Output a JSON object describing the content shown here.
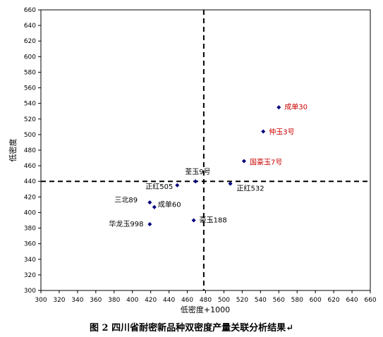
{
  "caption": "图 2 四川省耐密新品种双密度产量关联分析结果↵",
  "chart_data": {
    "type": "scatter",
    "xlabel": "低密度+1000",
    "ylabel": "低密度",
    "xlim": [
      300,
      660
    ],
    "ylim": [
      300,
      660
    ],
    "x_ticks": [
      300,
      320,
      340,
      360,
      380,
      400,
      420,
      440,
      460,
      480,
      500,
      520,
      540,
      560,
      580,
      600,
      620,
      640,
      660
    ],
    "y_ticks": [
      300,
      320,
      340,
      360,
      380,
      400,
      420,
      440,
      460,
      480,
      500,
      520,
      540,
      560,
      580,
      600,
      620,
      640,
      660
    ],
    "reference_lines": {
      "x": 478,
      "y": 440
    },
    "grid": false,
    "legend": "none",
    "marker_color": "#000080",
    "points": [
      {
        "label": "成单30",
        "x": 560,
        "y": 535,
        "color": "#cc0000"
      },
      {
        "label": "仲玉3号",
        "x": 543,
        "y": 504,
        "color": "#cc0000"
      },
      {
        "label": "国豪玉7号",
        "x": 522,
        "y": 466,
        "color": "#cc0000"
      },
      {
        "label": "荃玉9号",
        "x": 469,
        "y": 440,
        "color": "#000000"
      },
      {
        "label": "正红505",
        "x": 449,
        "y": 435,
        "color": "#000000"
      },
      {
        "label": "正红532",
        "x": 507,
        "y": 437,
        "color": "#000000"
      },
      {
        "label": "三北89",
        "x": 419,
        "y": 413,
        "color": "#000000"
      },
      {
        "label": "成单60",
        "x": 424,
        "y": 407,
        "color": "#000000"
      },
      {
        "label": "华龙玉998",
        "x": 419,
        "y": 385,
        "color": "#000000"
      },
      {
        "label": "豪玉188",
        "x": 467,
        "y": 390,
        "color": "#000000"
      }
    ]
  }
}
